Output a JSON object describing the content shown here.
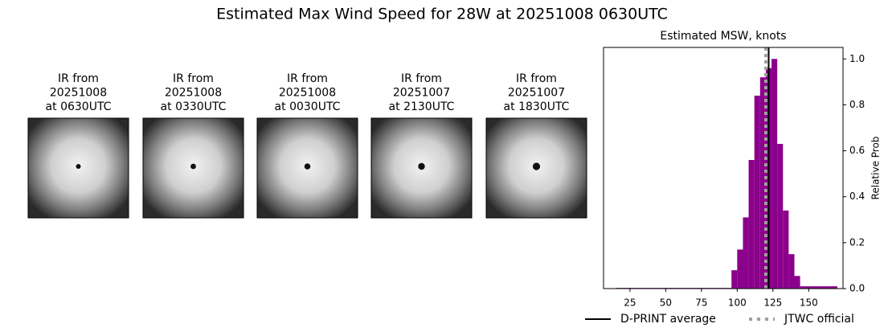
{
  "title": "Estimated Max Wind Speed for 28W at 20251008 0630UTC",
  "panels": [
    {
      "lines": [
        "IR from",
        "20251008",
        "at 0630UTC"
      ]
    },
    {
      "lines": [
        "IR from",
        "20251008",
        "at 0330UTC"
      ]
    },
    {
      "lines": [
        "IR from",
        "20251008",
        "at 0030UTC"
      ]
    },
    {
      "lines": [
        "IR from",
        "20251007",
        "at 2130UTC"
      ]
    },
    {
      "lines": [
        "IR from",
        "20251007",
        "at 1830UTC"
      ]
    }
  ],
  "chart_data": {
    "type": "histogram",
    "title": "Estimated MSW, knots",
    "y_label": "Relative Prob",
    "bins": [
      15,
      96,
      100,
      104,
      108,
      112,
      116,
      120,
      124,
      128,
      132,
      136,
      140,
      144,
      170
    ],
    "values": [
      0.003,
      0.08,
      0.17,
      0.31,
      0.56,
      0.84,
      0.92,
      0.96,
      1.0,
      0.63,
      0.34,
      0.15,
      0.055,
      0.01
    ],
    "color": "#8b008b",
    "xlim": [
      6.5,
      174
    ],
    "xticks": [
      25,
      50,
      75,
      100,
      125,
      150
    ],
    "ylim": [
      0,
      1.05
    ],
    "yticks": [
      {
        "value": 0,
        "label": "0.0"
      },
      {
        "value": 0.2,
        "label": "0.2"
      },
      {
        "value": 0.4,
        "label": "0.4"
      },
      {
        "value": 0.6,
        "label": "0.6"
      },
      {
        "value": 0.8,
        "label": "0.8"
      },
      {
        "value": 1.0,
        "label": "1.0"
      }
    ],
    "reference_lines": [
      {
        "name": "D-PRINT average",
        "value": 122,
        "color": "#000000",
        "style": "solid"
      },
      {
        "name": "JTWC official",
        "value": 120,
        "color": "#a0a0a0",
        "style": "dotted"
      }
    ]
  }
}
